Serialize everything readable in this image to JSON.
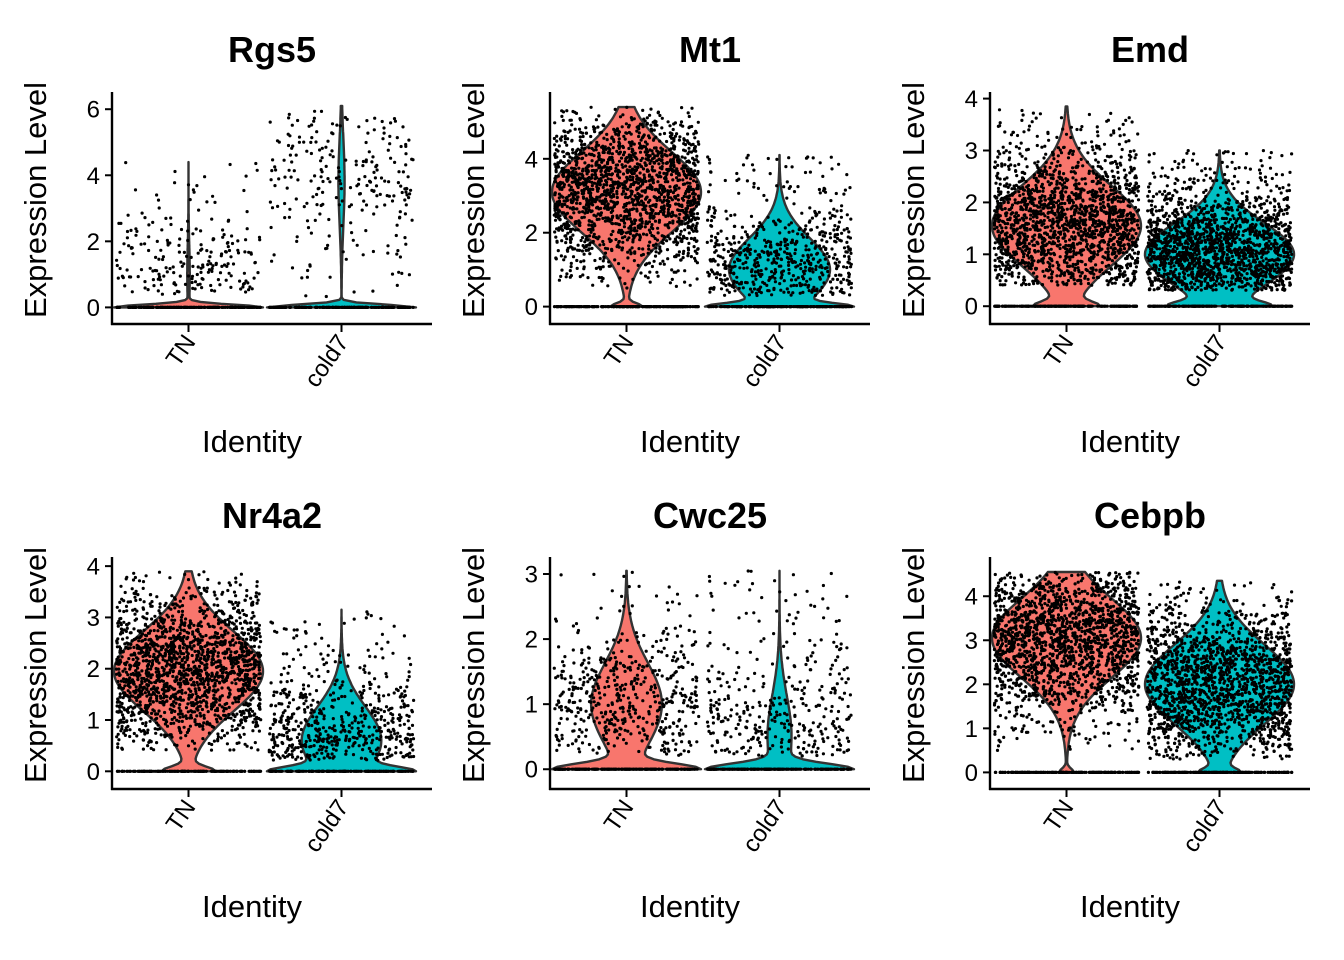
{
  "chart_data": [
    {
      "type": "violin",
      "title": "Rgs5",
      "xlabel": "Identity",
      "ylabel": "Expression Level",
      "categories": [
        "TN",
        "cold7"
      ],
      "yticks": [
        0,
        2,
        4,
        6
      ],
      "ylim": [
        -0.2,
        6.4
      ],
      "series": [
        {
          "name": "TN",
          "color": "#F8766D",
          "max": 4.4,
          "zero_fraction": 0.97,
          "nonzero_range": [
            0.4,
            4.4
          ],
          "mode": 1.0
        },
        {
          "name": "cold7",
          "color": "#00BFC4",
          "max": 6.1,
          "zero_fraction": 0.93,
          "nonzero_range": [
            0.2,
            6.1
          ],
          "mode": 3.8
        }
      ]
    },
    {
      "type": "violin",
      "title": "Mt1",
      "xlabel": "Identity",
      "ylabel": "Expression Level",
      "categories": [
        "TN",
        "cold7"
      ],
      "yticks": [
        0,
        2,
        4
      ],
      "ylim": [
        -0.2,
        5.7
      ],
      "series": [
        {
          "name": "TN",
          "color": "#F8766D",
          "max": 5.4,
          "zero_fraction": 0.1,
          "nonzero_range": [
            0.5,
            5.4
          ],
          "mode": 3.1
        },
        {
          "name": "cold7",
          "color": "#00BFC4",
          "max": 4.1,
          "zero_fraction": 0.35,
          "nonzero_range": [
            0.3,
            4.1
          ],
          "mode": 1.0
        }
      ]
    },
    {
      "type": "violin",
      "title": "Emd",
      "xlabel": "Identity",
      "ylabel": "Expression Level",
      "categories": [
        "TN",
        "cold7"
      ],
      "yticks": [
        0,
        1,
        2,
        3,
        4
      ],
      "ylim": [
        -0.15,
        4.05
      ],
      "series": [
        {
          "name": "TN",
          "color": "#F8766D",
          "max": 3.85,
          "zero_fraction": 0.15,
          "nonzero_range": [
            0.4,
            3.85
          ],
          "mode": 1.55
        },
        {
          "name": "cold7",
          "color": "#00BFC4",
          "max": 3.0,
          "zero_fraction": 0.2,
          "nonzero_range": [
            0.3,
            3.0
          ],
          "mode": 1.0
        }
      ]
    },
    {
      "type": "violin",
      "title": "Nr4a2",
      "xlabel": "Identity",
      "ylabel": "Expression Level",
      "categories": [
        "TN",
        "cold7"
      ],
      "yticks": [
        0,
        1,
        2,
        3,
        4
      ],
      "ylim": [
        -0.15,
        4.1
      ],
      "series": [
        {
          "name": "TN",
          "color": "#F8766D",
          "max": 3.9,
          "zero_fraction": 0.15,
          "nonzero_range": [
            0.4,
            3.9
          ],
          "mode": 1.95
        },
        {
          "name": "cold7",
          "color": "#00BFC4",
          "max": 3.15,
          "zero_fraction": 0.4,
          "nonzero_range": [
            0.2,
            3.15
          ],
          "mode": 0.6
        }
      ]
    },
    {
      "type": "violin",
      "title": "Cwc25",
      "xlabel": "Identity",
      "ylabel": "Expression Level",
      "categories": [
        "TN",
        "cold7"
      ],
      "yticks": [
        0,
        1,
        2,
        3
      ],
      "ylim": [
        -0.15,
        3.2
      ],
      "series": [
        {
          "name": "TN",
          "color": "#F8766D",
          "max": 3.05,
          "zero_fraction": 0.5,
          "nonzero_range": [
            0.2,
            3.05
          ],
          "mode": 1.0
        },
        {
          "name": "cold7",
          "color": "#00BFC4",
          "max": 3.05,
          "zero_fraction": 0.75,
          "nonzero_range": [
            0.2,
            3.05
          ],
          "mode": 0.5
        }
      ]
    },
    {
      "type": "violin",
      "title": "Cebpb",
      "xlabel": "Identity",
      "ylabel": "Expression Level",
      "categories": [
        "TN",
        "cold7"
      ],
      "yticks": [
        0,
        1,
        2,
        3,
        4
      ],
      "ylim": [
        -0.15,
        4.8
      ],
      "series": [
        {
          "name": "TN",
          "color": "#F8766D",
          "max": 4.55,
          "zero_fraction": 0.05,
          "nonzero_range": [
            0.5,
            4.55
          ],
          "mode": 3.05
        },
        {
          "name": "cold7",
          "color": "#00BFC4",
          "max": 4.35,
          "zero_fraction": 0.1,
          "nonzero_range": [
            0.3,
            4.35
          ],
          "mode": 2.0
        }
      ]
    }
  ]
}
